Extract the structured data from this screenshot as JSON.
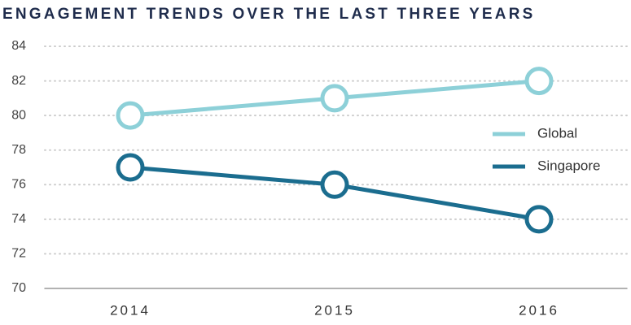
{
  "chart_data": {
    "type": "line",
    "title": "ENGAGEMENT TRENDS OVER THE LAST THREE YEARS",
    "categories": [
      "2014",
      "2015",
      "2016"
    ],
    "series": [
      {
        "name": "Global",
        "color": "#8dd0d8",
        "values": [
          80,
          81,
          82
        ]
      },
      {
        "name": "Singapore",
        "color": "#1b6d8f",
        "values": [
          77,
          76,
          74
        ]
      }
    ],
    "ylim": [
      70,
      84
    ],
    "yticks": [
      70,
      72,
      74,
      76,
      78,
      80,
      82,
      84
    ],
    "grid": true,
    "legend": "right"
  }
}
